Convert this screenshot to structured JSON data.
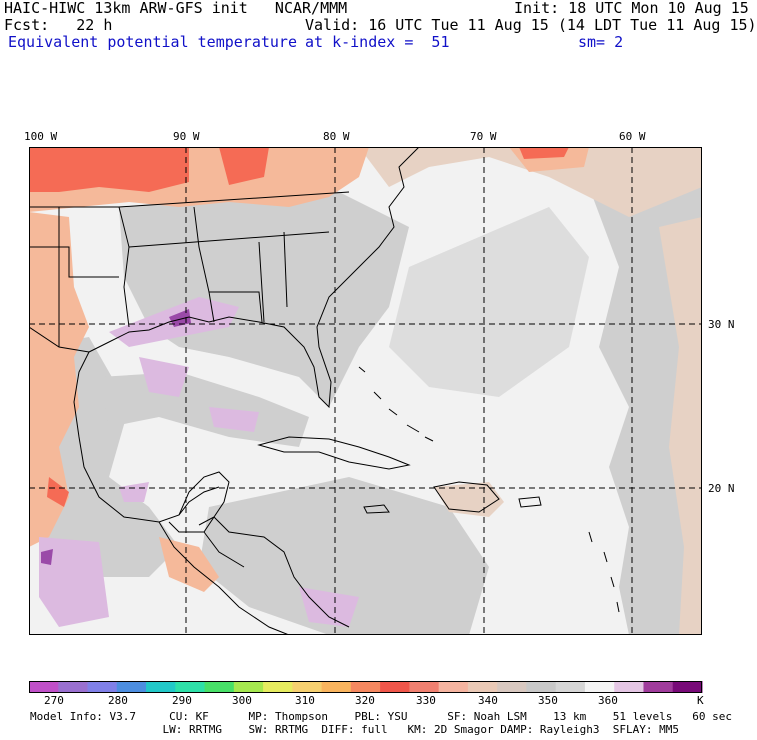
{
  "header": {
    "line1_left": "HAIC-HIWC 13km ARW-GFS init   NCAR/MMM",
    "line1_right": "Init: 18 UTC Mon 10 Aug 15",
    "line2_left": "Fcst:   22 h",
    "line2_right": "Valid: 16 UTC Tue 11 Aug 15 (14 LDT Tue 11 Aug 15)",
    "line3_left": "Equivalent potential temperature",
    "line3_mid": "at k-index =  51",
    "line3_right": "sm= 2"
  },
  "map": {
    "lon_labels": [
      "100 W",
      "90 W",
      "80 W",
      "70 W",
      "60 W"
    ],
    "lat_labels": [
      "30 N",
      "20 N"
    ],
    "colors": {
      "background_field": "#f2f2f2",
      "gray_field": "#cfcfcf",
      "warm_field": "#f5b99a",
      "hot_field": "#f56b55",
      "tan_field": "#e7d2c4",
      "lilac_field": "#dcbae0",
      "purple_field": "#9a4aa8",
      "coast": "#000000"
    }
  },
  "colorbar": {
    "colors": [
      "#c050c8",
      "#9a70d0",
      "#8080e8",
      "#4d8ee0",
      "#22c8c8",
      "#2ee0a8",
      "#48e068",
      "#a6e850",
      "#e6ec60",
      "#f6d070",
      "#f9b45e",
      "#f58860",
      "#f0564a",
      "#f08070",
      "#f5b4a0",
      "#eac9b6",
      "#d8c8c0",
      "#c8c8c8",
      "#d6d6d6",
      "#f4f4f4",
      "#e4c6e4",
      "#a03c9c",
      "#780a78"
    ],
    "labels": [
      "270",
      "280",
      "290",
      "300",
      "310",
      "320",
      "330",
      "340",
      "350",
      "360"
    ],
    "unit": "K"
  },
  "model_info": {
    "line1": "Model Info: V3.7     CU: KF      MP: Thompson    PBL: YSU      SF: Noah LSM    13 km    51 levels   60 sec",
    "line2": "                    LW: RRTMG    SW: RRTMG  DIFF: full   KM: 2D Smagor DAMP: Rayleigh3  SFLAY: MM5"
  }
}
